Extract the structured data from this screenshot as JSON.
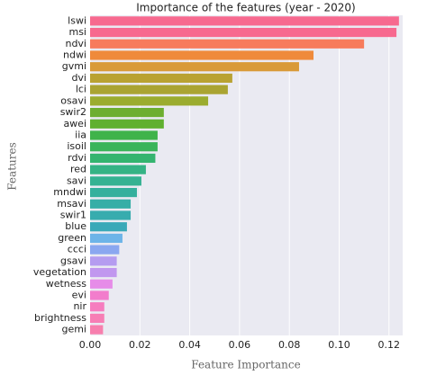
{
  "chart_data": {
    "type": "barh",
    "title": "Importance of the features (year - 2020)",
    "xlabel": "Feature Importance",
    "ylabel": "Features",
    "categories": [
      "lswi",
      "msi",
      "ndvi",
      "ndwi",
      "gvmi",
      "dvi",
      "lci",
      "osavi",
      "swir2",
      "awei",
      "iia",
      "isoil",
      "rdvi",
      "red",
      "savi",
      "mndwi",
      "msavi",
      "swir1",
      "blue",
      "green",
      "ccci",
      "gsavi",
      "vegetation",
      "wetness",
      "evi",
      "nir",
      "brightness",
      "gemi"
    ],
    "values": [
      0.124,
      0.123,
      0.11,
      0.0897,
      0.0839,
      0.0571,
      0.0553,
      0.0474,
      0.0296,
      0.0296,
      0.0271,
      0.0271,
      0.0262,
      0.0224,
      0.0206,
      0.0188,
      0.0163,
      0.0163,
      0.0148,
      0.013,
      0.0117,
      0.0107,
      0.0107,
      0.009,
      0.0075,
      0.0057,
      0.0057,
      0.0052
    ],
    "colors": [
      "#f7698f",
      "#f7698f",
      "#f77b5c",
      "#ef8a3b",
      "#d99a38",
      "#b9a232",
      "#aaa432",
      "#9bac2f",
      "#6dae30",
      "#60b030",
      "#3fb34a",
      "#3ab45a",
      "#34b46f",
      "#35b385",
      "#35b292",
      "#35b09d",
      "#36aea7",
      "#37acae",
      "#3aa9b8",
      "#6db4e8",
      "#8aa7f0",
      "#b59cf0",
      "#c197ef",
      "#e68ce8",
      "#f27dcc",
      "#f67dbf",
      "#f77eb5",
      "#f77fae"
    ],
    "xlim": [
      0,
      0.1255
    ],
    "xticks": [
      {
        "value": 0,
        "label": "0.00"
      },
      0.02,
      0.04,
      0.06,
      0.08,
      {
        "value": 0.1,
        "label": "0.10"
      },
      0.12
    ],
    "grid": true
  }
}
